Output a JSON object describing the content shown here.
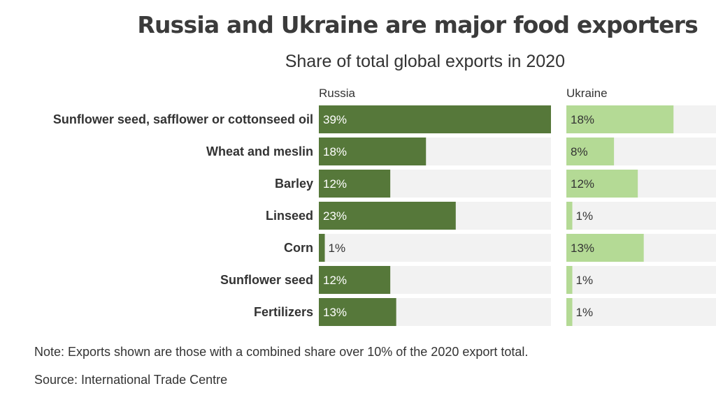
{
  "title": "Russia and Ukraine are major food exporters",
  "subtitle": "Share of total global exports in 2020",
  "note": "Note: Exports shown are those with a combined share over 10% of the 2020 export total.",
  "source": "Source: International Trade Centre",
  "colors": {
    "russia": "#56783a",
    "ukraine": "#b4da95",
    "track": "#f2f2f2",
    "label": "#333333"
  },
  "chart_data": {
    "type": "bar",
    "orientation": "horizontal",
    "categories": [
      "Sunflower seed, safflower or cottonseed oil",
      "Wheat and meslin",
      "Barley",
      "Linseed",
      "Corn",
      "Sunflower seed",
      "Fertilizers"
    ],
    "series": [
      {
        "name": "Russia",
        "values": [
          39,
          18,
          12,
          23,
          1,
          12,
          13
        ],
        "labels": [
          "39%",
          "18%",
          "12%",
          "23%",
          "1%",
          "12%",
          "13%"
        ]
      },
      {
        "name": "Ukraine",
        "values": [
          18,
          8,
          12,
          1,
          13,
          1,
          1
        ],
        "labels": [
          "18%",
          "8%",
          "12%",
          "1%",
          "13%",
          "1%",
          "1%"
        ]
      }
    ],
    "unit": "%"
  }
}
